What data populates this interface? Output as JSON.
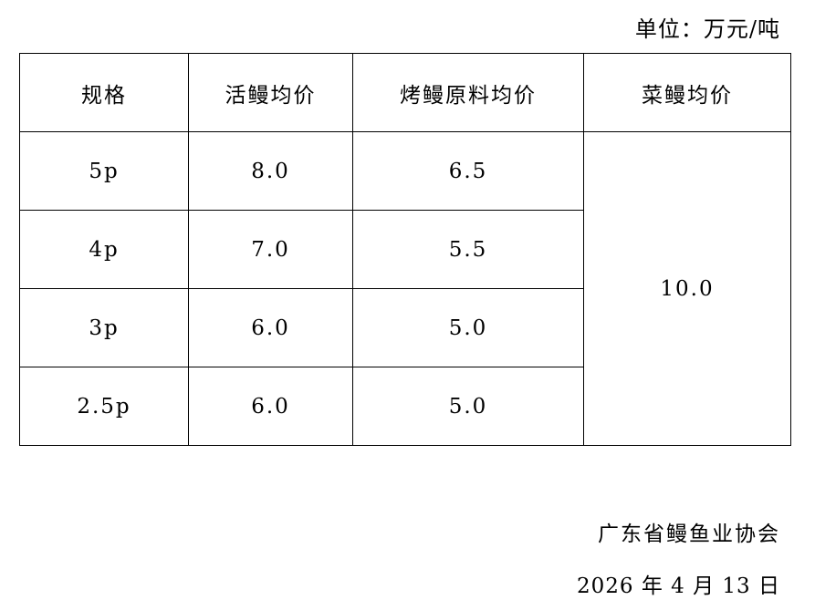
{
  "unit_label": "单位：万元/吨",
  "table": {
    "headers": [
      "规格",
      "活鳗均价",
      "烤鳗原料均价",
      "菜鳗均价"
    ],
    "rows": [
      {
        "spec": "5p",
        "live": "8.0",
        "roast": "6.5"
      },
      {
        "spec": "4p",
        "live": "7.0",
        "roast": "5.5"
      },
      {
        "spec": "3p",
        "live": "6.0",
        "roast": "5.0"
      },
      {
        "spec": "2.5p",
        "live": "6.0",
        "roast": "5.0"
      }
    ],
    "dish_price": "10.0"
  },
  "footer": {
    "organization": "广东省鳗鱼业协会",
    "date": "2026 年 4 月 13 日"
  }
}
